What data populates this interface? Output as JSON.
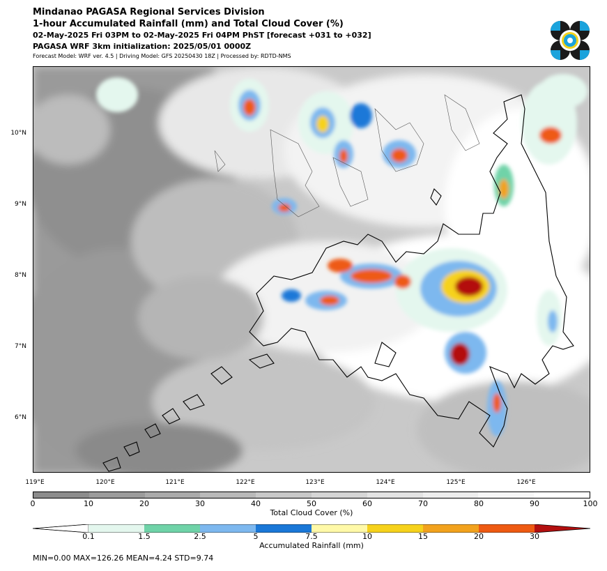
{
  "header": {
    "line1": "Mindanao PAGASA Regional Services Division",
    "line2": "1-hour Accumulated Rainfall (mm) and Total Cloud Cover (%)",
    "line3": "02-May-2025 Fri 03PM to 02-May-2025 Fri 04PM PhST [forecast +031 to +032]",
    "line4": "PAGASA WRF 3km initialization: 2025/05/01 0000Z",
    "line5": "Forecast Model: WRF ver. 4.5 | Driving Model: GFS 20250430 18Z | Processed by: RDTD-NMS"
  },
  "logo": {
    "name": "pagasa-logo",
    "colors": [
      "#1a1a1a",
      "#1ba3dc",
      "#f2d21b"
    ]
  },
  "map": {
    "lat_labels": [
      "10°N",
      "9°N",
      "8°N",
      "7°N",
      "6°N"
    ],
    "lon_labels": [
      "119°E",
      "120°E",
      "121°E",
      "122°E",
      "123°E",
      "124°E",
      "125°E",
      "126°E"
    ]
  },
  "cloud_colorbar": {
    "label": "Total Cloud Cover (%)",
    "ticks": [
      "0",
      "10",
      "20",
      "30",
      "40",
      "50",
      "60",
      "70",
      "80",
      "90",
      "100"
    ],
    "colors": [
      "#8c8c8c",
      "#9b9b9b",
      "#aaaaaa",
      "#b9b9b9",
      "#c8c8c8",
      "#d6d6d6",
      "#e3e3e3",
      "#eeeeee",
      "#f7f7f7",
      "#ffffff"
    ]
  },
  "rain_colorbar": {
    "label": "Accumulated Rainfall (mm)",
    "ticks": [
      "0.1",
      "1.5",
      "2.5",
      "5",
      "7.5",
      "10",
      "15",
      "20",
      "30"
    ],
    "colors": [
      "#e4f7ee",
      "#6fd3a8",
      "#7db8ef",
      "#1a78d8",
      "#fff9a8",
      "#f6d21c",
      "#f2a21d",
      "#ee5a12",
      "#b30f0f"
    ]
  },
  "stats": "MIN=0.00   MAX=126.26   MEAN=4.24   STD=9.74"
}
